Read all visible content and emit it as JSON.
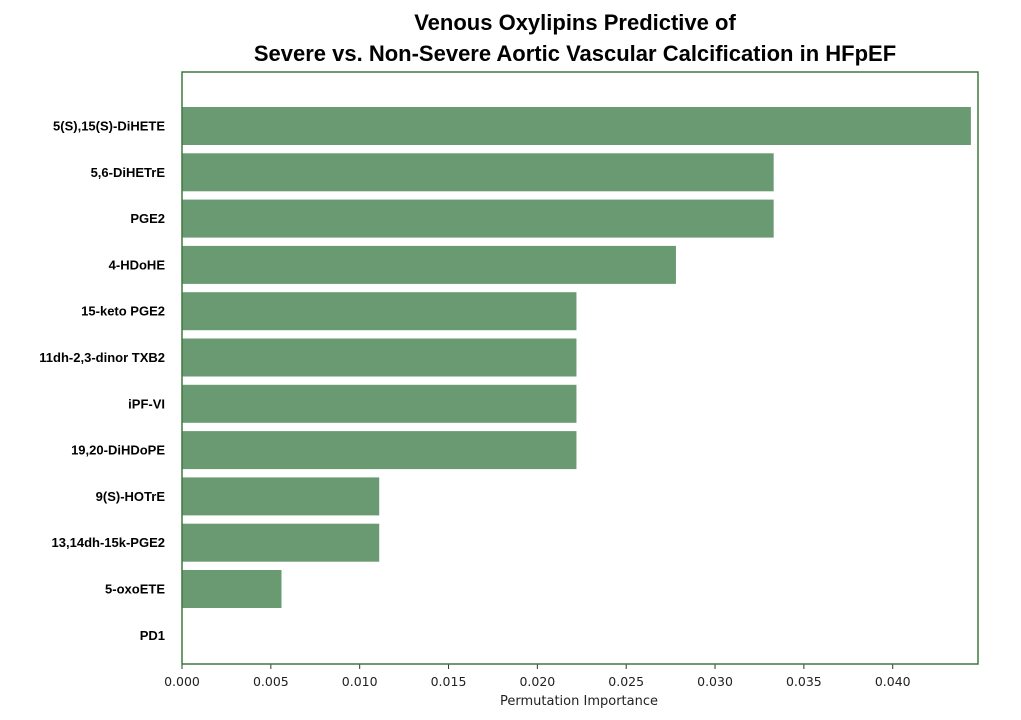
{
  "chart_data": {
    "type": "bar",
    "orientation": "horizontal",
    "title": [
      "Venous Oxylipins Predictive of",
      "Severe vs. Non-Severe Aortic Vascular Calcification in HFpEF"
    ],
    "xlabel": "Permutation Importance",
    "ylabel": "",
    "xlim": [
      0,
      0.0448
    ],
    "xticks": [
      0.0,
      0.005,
      0.01,
      0.015,
      0.02,
      0.025,
      0.03,
      0.035,
      0.04
    ],
    "xtick_labels": [
      "0.000",
      "0.005",
      "0.010",
      "0.015",
      "0.020",
      "0.025",
      "0.030",
      "0.035",
      "0.040"
    ],
    "categories": [
      "5(S),15(S)-DiHETE",
      "5,6-DiHETrE",
      "PGE2",
      "4-HDoHE",
      "15-keto PGE2",
      "11dh-2,3-dinor TXB2",
      "iPF-VI",
      "19,20-DiHDoPE",
      "9(S)-HOTrE",
      "13,14dh-15k-PGE2",
      "5-oxoETE",
      "PD1"
    ],
    "values": [
      0.0444,
      0.0333,
      0.0333,
      0.0278,
      0.0222,
      0.0222,
      0.0222,
      0.0222,
      0.0111,
      0.0111,
      0.0056,
      0.0
    ],
    "bar_color": "#6a9a72",
    "frame_color": "#3d7a3d",
    "grid": false
  }
}
